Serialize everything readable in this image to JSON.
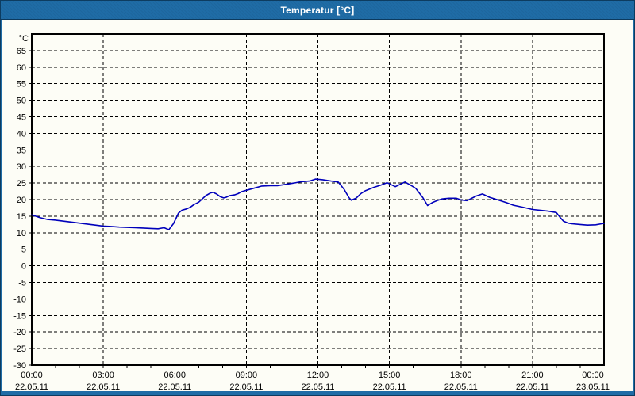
{
  "window": {
    "title": "Temperatur [°C]"
  },
  "colors": {
    "titlebar_bg": "#1f6ca6",
    "titlebar_text": "#ffffff",
    "window_border": "#0d3c60",
    "chart_bg": "#fdfdf6",
    "grid": "#000000",
    "axis": "#000000",
    "label": "#000000",
    "series": "#0000bb"
  },
  "chart_data": {
    "type": "line",
    "title": "Temperatur [°C]",
    "y_unit_label": "°C",
    "grid": "dashed",
    "legend_position": "none",
    "x_range": [
      0,
      24
    ],
    "y_range": [
      -30,
      70
    ],
    "y_ticks": {
      "min": -30,
      "max": 65,
      "step": 5
    },
    "x_minor_tick_hours": 1,
    "x_major_ticks": [
      {
        "hour": 0,
        "time": "00:00",
        "date": "22.05.11"
      },
      {
        "hour": 3,
        "time": "03:00",
        "date": "22.05.11"
      },
      {
        "hour": 6,
        "time": "06:00",
        "date": "22.05.11"
      },
      {
        "hour": 9,
        "time": "09:00",
        "date": "22.05.11"
      },
      {
        "hour": 12,
        "time": "12:00",
        "date": "22.05.11"
      },
      {
        "hour": 15,
        "time": "15:00",
        "date": "22.05.11"
      },
      {
        "hour": 18,
        "time": "18:00",
        "date": "22.05.11"
      },
      {
        "hour": 21,
        "time": "21:00",
        "date": "22.05.11"
      },
      {
        "hour": 24,
        "time": "00:00",
        "date": "23.05.11"
      }
    ],
    "series": [
      {
        "name": "Temperatur",
        "unit": "°C",
        "color": "#0000bb",
        "points": [
          [
            0,
            15.4
          ],
          [
            0.33,
            14.6
          ],
          [
            0.67,
            14.0
          ],
          [
            1,
            13.8
          ],
          [
            1.33,
            13.5
          ],
          [
            1.67,
            13.2
          ],
          [
            2,
            12.9
          ],
          [
            2.33,
            12.6
          ],
          [
            2.67,
            12.3
          ],
          [
            3,
            12.0
          ],
          [
            3.33,
            11.9
          ],
          [
            3.67,
            11.7
          ],
          [
            4,
            11.6
          ],
          [
            4.33,
            11.5
          ],
          [
            4.67,
            11.4
          ],
          [
            5,
            11.3
          ],
          [
            5.3,
            11.2
          ],
          [
            5.55,
            11.5
          ],
          [
            5.75,
            10.9
          ],
          [
            5.95,
            12.8
          ],
          [
            6.15,
            15.9
          ],
          [
            6.3,
            16.8
          ],
          [
            6.5,
            17.2
          ],
          [
            6.65,
            17.7
          ],
          [
            6.8,
            18.5
          ],
          [
            7,
            19.2
          ],
          [
            7.15,
            20.2
          ],
          [
            7.3,
            21.2
          ],
          [
            7.5,
            22.0
          ],
          [
            7.6,
            22.2
          ],
          [
            7.75,
            21.7
          ],
          [
            7.9,
            20.9
          ],
          [
            8.05,
            20.5
          ],
          [
            8.15,
            20.7
          ],
          [
            8.3,
            21.2
          ],
          [
            8.5,
            21.4
          ],
          [
            8.65,
            21.8
          ],
          [
            8.8,
            22.4
          ],
          [
            9,
            22.8
          ],
          [
            9.3,
            23.4
          ],
          [
            9.65,
            24.1
          ],
          [
            10,
            24.2
          ],
          [
            10.3,
            24.2
          ],
          [
            10.65,
            24.6
          ],
          [
            11,
            25.0
          ],
          [
            11.3,
            25.4
          ],
          [
            11.65,
            25.6
          ],
          [
            11.9,
            26.2
          ],
          [
            12.2,
            26.0
          ],
          [
            12.55,
            25.6
          ],
          [
            12.85,
            25.3
          ],
          [
            13.1,
            23.1
          ],
          [
            13.3,
            20.6
          ],
          [
            13.4,
            19.8
          ],
          [
            13.6,
            20.4
          ],
          [
            13.8,
            21.8
          ],
          [
            14,
            22.7
          ],
          [
            14.35,
            23.7
          ],
          [
            14.65,
            24.4
          ],
          [
            14.9,
            25.1
          ],
          [
            15.25,
            23.9
          ],
          [
            15.65,
            25.3
          ],
          [
            15.9,
            24.3
          ],
          [
            16.1,
            23.4
          ],
          [
            16.4,
            20.6
          ],
          [
            16.6,
            18.2
          ],
          [
            16.8,
            19.1
          ],
          [
            17,
            19.7
          ],
          [
            17.2,
            20.2
          ],
          [
            17.5,
            20.4
          ],
          [
            17.8,
            20.4
          ],
          [
            18,
            19.9
          ],
          [
            18.25,
            19.7
          ],
          [
            18.65,
            21.1
          ],
          [
            18.9,
            21.7
          ],
          [
            19.2,
            20.7
          ],
          [
            19.55,
            19.9
          ],
          [
            19.9,
            19.1
          ],
          [
            20.2,
            18.3
          ],
          [
            20.65,
            17.6
          ],
          [
            21,
            17.0
          ],
          [
            21.3,
            16.8
          ],
          [
            21.65,
            16.5
          ],
          [
            22,
            16.1
          ],
          [
            22.15,
            14.7
          ],
          [
            22.3,
            13.5
          ],
          [
            22.5,
            12.9
          ],
          [
            22.65,
            12.7
          ],
          [
            23,
            12.5
          ],
          [
            23.3,
            12.3
          ],
          [
            23.65,
            12.4
          ],
          [
            23.9,
            12.7
          ],
          [
            24,
            12.8
          ]
        ]
      }
    ]
  }
}
